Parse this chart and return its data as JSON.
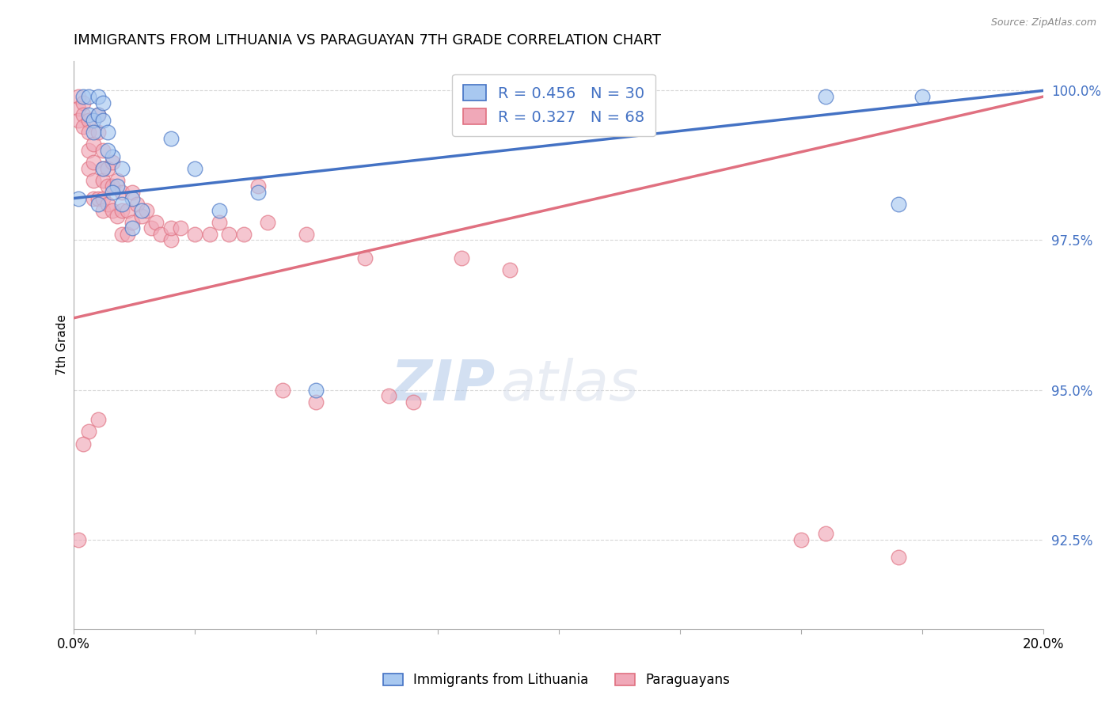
{
  "title": "IMMIGRANTS FROM LITHUANIA VS PARAGUAYAN 7TH GRADE CORRELATION CHART",
  "source": "Source: ZipAtlas.com",
  "ylabel": "7th Grade",
  "xlim": [
    0.0,
    0.2
  ],
  "ylim": [
    0.91,
    1.005
  ],
  "yticks": [
    0.925,
    0.95,
    0.975,
    1.0
  ],
  "ytick_labels": [
    "92.5%",
    "95.0%",
    "97.5%",
    "100.0%"
  ],
  "xticks": [
    0.0,
    0.025,
    0.05,
    0.075,
    0.1,
    0.125,
    0.15,
    0.175,
    0.2
  ],
  "xtick_labels": [
    "0.0%",
    "",
    "",
    "",
    "",
    "",
    "",
    "",
    "20.0%"
  ],
  "legend_R_blue": "0.456",
  "legend_N_blue": "30",
  "legend_R_pink": "0.327",
  "legend_N_pink": "68",
  "blue_scatter_x": [
    0.001,
    0.002,
    0.003,
    0.003,
    0.004,
    0.004,
    0.005,
    0.005,
    0.006,
    0.006,
    0.007,
    0.008,
    0.009,
    0.01,
    0.012,
    0.014,
    0.02,
    0.025,
    0.03,
    0.038,
    0.005,
    0.006,
    0.007,
    0.008,
    0.01,
    0.012,
    0.05,
    0.155,
    0.17,
    0.175
  ],
  "blue_scatter_y": [
    0.982,
    0.999,
    0.999,
    0.996,
    0.995,
    0.993,
    0.999,
    0.996,
    0.998,
    0.995,
    0.993,
    0.989,
    0.984,
    0.987,
    0.982,
    0.98,
    0.992,
    0.987,
    0.98,
    0.983,
    0.981,
    0.987,
    0.99,
    0.983,
    0.981,
    0.977,
    0.95,
    0.999,
    0.981,
    0.999
  ],
  "pink_scatter_x": [
    0.001,
    0.001,
    0.001,
    0.002,
    0.002,
    0.002,
    0.003,
    0.003,
    0.003,
    0.003,
    0.004,
    0.004,
    0.004,
    0.004,
    0.005,
    0.005,
    0.005,
    0.006,
    0.006,
    0.006,
    0.006,
    0.006,
    0.007,
    0.007,
    0.007,
    0.008,
    0.008,
    0.008,
    0.009,
    0.009,
    0.01,
    0.01,
    0.01,
    0.011,
    0.011,
    0.012,
    0.012,
    0.013,
    0.014,
    0.015,
    0.016,
    0.017,
    0.018,
    0.02,
    0.02,
    0.022,
    0.025,
    0.028,
    0.03,
    0.032,
    0.035,
    0.038,
    0.04,
    0.043,
    0.048,
    0.05,
    0.06,
    0.065,
    0.07,
    0.08,
    0.09,
    0.15,
    0.155,
    0.17,
    0.005,
    0.003,
    0.002,
    0.001
  ],
  "pink_scatter_y": [
    0.999,
    0.997,
    0.995,
    0.998,
    0.996,
    0.994,
    0.995,
    0.993,
    0.99,
    0.987,
    0.991,
    0.988,
    0.985,
    0.982,
    0.996,
    0.993,
    0.982,
    0.99,
    0.987,
    0.985,
    0.982,
    0.98,
    0.987,
    0.984,
    0.981,
    0.988,
    0.984,
    0.98,
    0.985,
    0.979,
    0.983,
    0.98,
    0.976,
    0.98,
    0.976,
    0.983,
    0.978,
    0.981,
    0.979,
    0.98,
    0.977,
    0.978,
    0.976,
    0.975,
    0.977,
    0.977,
    0.976,
    0.976,
    0.978,
    0.976,
    0.976,
    0.984,
    0.978,
    0.95,
    0.976,
    0.948,
    0.972,
    0.949,
    0.948,
    0.972,
    0.97,
    0.925,
    0.926,
    0.922,
    0.945,
    0.943,
    0.941,
    0.925
  ],
  "blue_color": "#a8c8f0",
  "pink_color": "#f0a8b8",
  "blue_line_color": "#4472c4",
  "pink_line_color": "#e07080",
  "watermark_zip": "ZIP",
  "watermark_atlas": "atlas",
  "background_color": "#ffffff",
  "grid_color": "#d8d8d8"
}
